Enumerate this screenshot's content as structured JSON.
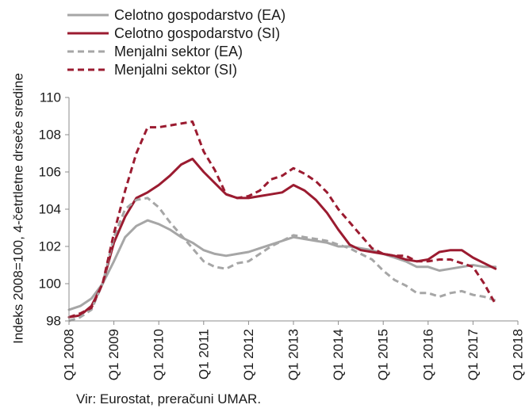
{
  "chart_data": {
    "type": "line",
    "title": "",
    "ylabel": "Indeks 2008=100, 4-četrtletne drseče sredine",
    "xlabel": "",
    "ylim": [
      98,
      110
    ],
    "yticks": [
      "98",
      "100",
      "102",
      "104",
      "106",
      "108",
      "110"
    ],
    "xticks": [
      "Q1 2008",
      "Q1 2009",
      "Q1 2010",
      "Q1 2011",
      "Q1 2012",
      "Q1 2013",
      "Q1 2014",
      "Q1 2015",
      "Q1 2016",
      "Q1 2017",
      "Q1 2018"
    ],
    "x": [
      "Q1 2008",
      "Q2 2008",
      "Q3 2008",
      "Q4 2008",
      "Q1 2009",
      "Q2 2009",
      "Q3 2009",
      "Q4 2009",
      "Q1 2010",
      "Q2 2010",
      "Q3 2010",
      "Q4 2010",
      "Q1 2011",
      "Q2 2011",
      "Q3 2011",
      "Q4 2011",
      "Q1 2012",
      "Q2 2012",
      "Q3 2012",
      "Q4 2012",
      "Q1 2013",
      "Q2 2013",
      "Q3 2013",
      "Q4 2013",
      "Q1 2014",
      "Q2 2014",
      "Q3 2014",
      "Q4 2014",
      "Q1 2015",
      "Q2 2015",
      "Q3 2015",
      "Q4 2015",
      "Q1 2016",
      "Q2 2016",
      "Q3 2016",
      "Q4 2016",
      "Q1 2017",
      "Q2 2017",
      "Q3 2017"
    ],
    "grid": false,
    "legend": "top-left",
    "series": [
      {
        "name": "Celotno gospodarstvo (EA)",
        "color": "#a6a6a6",
        "dash": false,
        "values": [
          98.6,
          98.8,
          99.2,
          100.0,
          101.2,
          102.5,
          103.1,
          103.4,
          103.2,
          102.9,
          102.5,
          102.2,
          101.8,
          101.6,
          101.5,
          101.6,
          101.7,
          101.9,
          102.1,
          102.3,
          102.5,
          102.4,
          102.3,
          102.2,
          102.0,
          102.0,
          101.9,
          101.8,
          101.6,
          101.4,
          101.2,
          100.9,
          100.9,
          100.7,
          100.8,
          100.9,
          101.0,
          100.9,
          100.9
        ]
      },
      {
        "name": "Celotno gospodarstvo (SI)",
        "color": "#9b1b30",
        "dash": false,
        "values": [
          98.2,
          98.3,
          98.8,
          100.0,
          102.2,
          103.6,
          104.6,
          104.9,
          105.3,
          105.8,
          106.4,
          106.7,
          106.0,
          105.4,
          104.8,
          104.6,
          104.6,
          104.7,
          104.8,
          104.9,
          105.3,
          105.0,
          104.5,
          103.8,
          102.9,
          102.1,
          101.8,
          101.7,
          101.6,
          101.5,
          101.3,
          101.2,
          101.3,
          101.7,
          101.8,
          101.8,
          101.4,
          101.1,
          100.8
        ]
      },
      {
        "name": "Menjalni sektor (EA)",
        "color": "#a6a6a6",
        "dash": true,
        "values": [
          98.0,
          98.2,
          98.6,
          100.0,
          102.5,
          104.0,
          104.5,
          104.6,
          104.1,
          103.3,
          102.6,
          101.9,
          101.2,
          100.9,
          100.8,
          101.1,
          101.2,
          101.6,
          102.0,
          102.3,
          102.6,
          102.5,
          102.4,
          102.3,
          102.1,
          101.9,
          101.6,
          101.3,
          100.7,
          100.2,
          99.9,
          99.5,
          99.5,
          99.3,
          99.5,
          99.6,
          99.4,
          99.3,
          99.1
        ]
      },
      {
        "name": "Menjalni sektor (SI)",
        "color": "#9b1b30",
        "dash": true,
        "values": [
          98.2,
          98.4,
          98.7,
          100.0,
          102.7,
          105.0,
          107.0,
          108.4,
          108.4,
          108.5,
          108.6,
          108.7,
          107.1,
          106.1,
          104.8,
          104.6,
          104.7,
          105.0,
          105.6,
          105.8,
          106.2,
          105.9,
          105.5,
          104.9,
          104.0,
          103.3,
          102.6,
          101.9,
          101.6,
          101.5,
          101.5,
          101.2,
          101.2,
          101.3,
          101.3,
          101.1,
          100.9,
          100.0,
          98.9
        ]
      }
    ]
  },
  "legend": {
    "items": [
      "Celotno gospodarstvo (EA)",
      "Celotno gospodarstvo (SI)",
      "Menjalni sektor (EA)",
      "Menjalni sektor (SI)"
    ]
  },
  "source_note": "Vir: Eurostat, preračuni UMAR."
}
